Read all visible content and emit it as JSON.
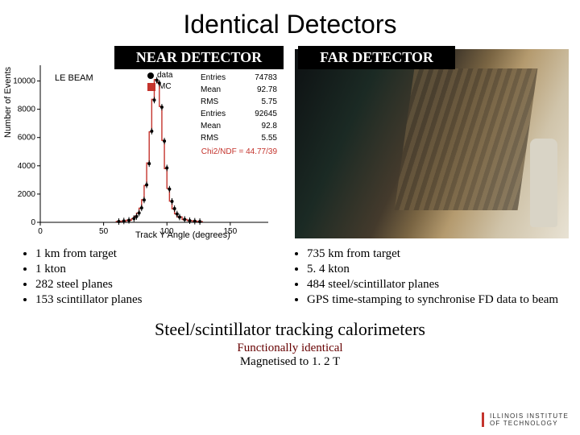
{
  "title": "Identical Detectors",
  "near": {
    "label": "NEAR DETECTOR",
    "beam_label": "LE BEAM",
    "legend": {
      "data": "data",
      "mc": "MC",
      "mc_color": "#c4342d"
    },
    "stats": {
      "Entries": "74783",
      "Mean": "92.78",
      "RMS": "5.75",
      "Entries2": "92645",
      "Mean2": "92.8",
      "RMS2": "5.55"
    },
    "chi2": "Chi2/NDF = 44.77/39",
    "chart": {
      "type": "histogram",
      "xlabel": "Track Y Angle (degrees)",
      "ylabel": "Number of Events",
      "xlim": [
        0,
        180
      ],
      "ylim": [
        0,
        11000
      ],
      "xticks": [
        0,
        50,
        100,
        150
      ],
      "yticks": [
        0,
        2000,
        4000,
        6000,
        8000,
        10000
      ],
      "mc_color": "#c4342d",
      "data_color": "#000000",
      "background_color": "#ffffff",
      "bins_x": [
        60,
        64,
        68,
        72,
        74,
        76,
        78,
        80,
        82,
        84,
        86,
        88,
        90,
        92,
        94,
        96,
        98,
        100,
        102,
        104,
        106,
        108,
        112,
        116,
        120,
        124
      ],
      "mc_y": [
        60,
        90,
        150,
        260,
        420,
        650,
        1000,
        1600,
        2600,
        4200,
        6400,
        8700,
        10100,
        9900,
        8200,
        5800,
        3800,
        2400,
        1500,
        950,
        600,
        380,
        200,
        120,
        80,
        50
      ],
      "data_y": [
        55,
        95,
        140,
        270,
        410,
        660,
        1020,
        1580,
        2650,
        4150,
        6450,
        8650,
        10050,
        9850,
        8150,
        5750,
        3850,
        2350,
        1480,
        970,
        590,
        370,
        210,
        115,
        78,
        52
      ]
    },
    "bullets": [
      "1 km from target",
      "1 kton",
      "282 steel planes",
      "153 scintillator planes"
    ]
  },
  "far": {
    "label": "FAR DETECTOR",
    "bullets": [
      "735 km from target",
      "5. 4 kton",
      "484 steel/scintillator planes",
      "GPS time-stamping to synchronise FD data to beam"
    ]
  },
  "footer": {
    "main": "Steel/scintillator tracking calorimeters",
    "sub1": "Functionally identical",
    "sub2": "Magnetised to 1. 2 T"
  },
  "logo": {
    "line1": "ILLINOIS INSTITUTE",
    "line2": "OF TECHNOLOGY"
  }
}
